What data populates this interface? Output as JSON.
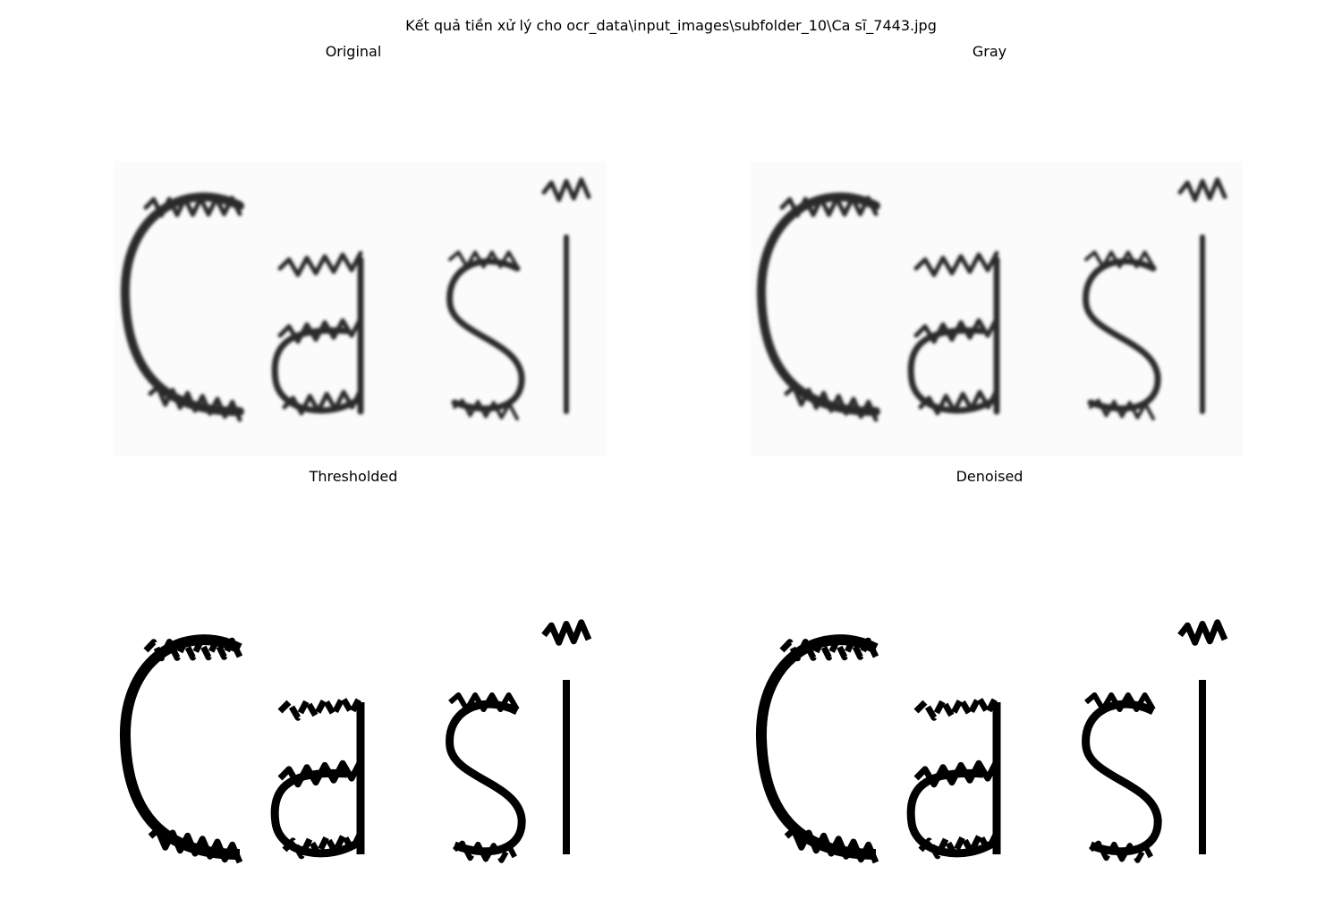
{
  "figure": {
    "suptitle": "Kết quả tiền xử lý cho ocr_data\\input_images\\subfolder_10\\Ca sĩ_7443.jpg"
  },
  "panels": [
    {
      "title": "Original",
      "style": "soft",
      "ink": "#2a2a2a"
    },
    {
      "title": "Gray",
      "style": "soft",
      "ink": "#2a2a2a"
    },
    {
      "title": "Thresholded",
      "style": "binary",
      "ink": "#000000"
    },
    {
      "title": "Denoised",
      "style": "binary",
      "ink": "#000000"
    }
  ],
  "image_text": "Ca sĩ"
}
